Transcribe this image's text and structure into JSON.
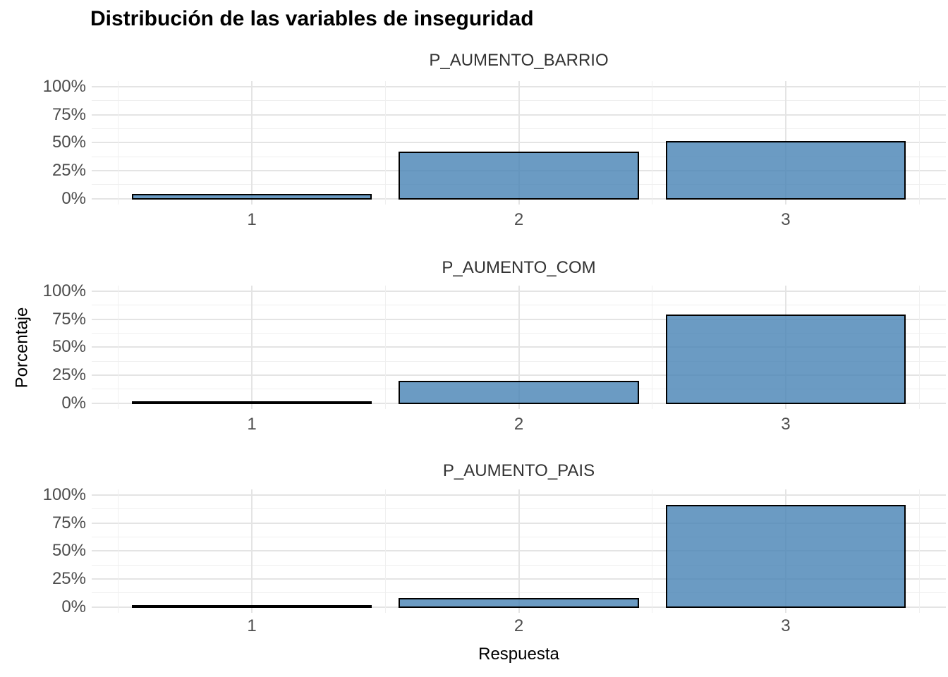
{
  "chart_data": {
    "type": "bar",
    "title": "Distribución de las variables de inseguridad",
    "xlabel": "Respuesta",
    "ylabel": "Porcentaje",
    "categories": [
      "1",
      "2",
      "3"
    ],
    "y_tick_values": [
      0,
      25,
      50,
      75,
      100
    ],
    "y_tick_labels": [
      "0%",
      "25%",
      "50%",
      "75%",
      "100%"
    ],
    "ylim": [
      0,
      100
    ],
    "grid": "major+minor",
    "legend_position": "none",
    "bar_fill": "#6b9ac3",
    "bar_fill_rgba": "rgba(70,130,180,0.8)",
    "bar_stroke": "#000000",
    "gridline_color": "#e4e4e4",
    "axis_text_color": "#4d4d4d",
    "strip_text_color": "#333333",
    "facets": [
      {
        "label": "P_AUMENTO_BARRIO",
        "values": [
          5,
          43,
          52
        ]
      },
      {
        "label": "P_AUMENTO_COM",
        "values": [
          2,
          21,
          80
        ]
      },
      {
        "label": "P_AUMENTO_PAIS",
        "values": [
          1,
          9,
          92
        ]
      }
    ]
  }
}
